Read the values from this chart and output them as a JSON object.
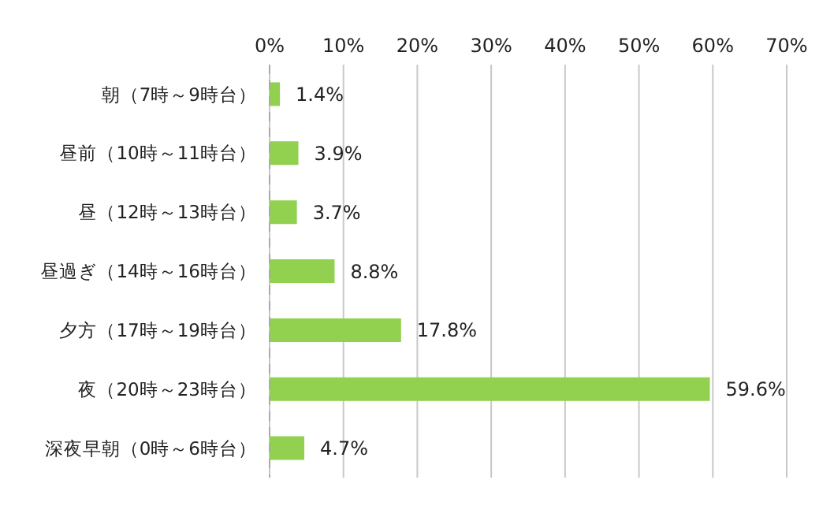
{
  "chart_data": {
    "type": "bar",
    "orientation": "horizontal",
    "categories": [
      "朝（7時～9時台）",
      "昼前（10時～11時台）",
      "昼（12時～13時台）",
      "昼過ぎ（14時～16時台）",
      "夕方（17時～19時台）",
      "夜（20時～23時台）",
      "深夜早朝（0時～6時台）"
    ],
    "values": [
      1.4,
      3.9,
      3.7,
      8.8,
      17.8,
      59.6,
      4.7
    ],
    "value_labels": [
      "1.4%",
      "3.9%",
      "3.7%",
      "8.8%",
      "17.8%",
      "59.6%",
      "4.7%"
    ],
    "color": "#92d050",
    "xlim": [
      0,
      70
    ],
    "xticks": [
      {
        "value": 0,
        "label": "0%"
      },
      {
        "value": 10,
        "label": "10%"
      },
      {
        "value": 20,
        "label": "20%"
      },
      {
        "value": 30,
        "label": "30%"
      },
      {
        "value": 40,
        "label": "40%"
      },
      {
        "value": 50,
        "label": "50%"
      },
      {
        "value": 60,
        "label": "60%"
      },
      {
        "value": 70,
        "label": "70%"
      }
    ],
    "grid": "x",
    "legend": false
  }
}
